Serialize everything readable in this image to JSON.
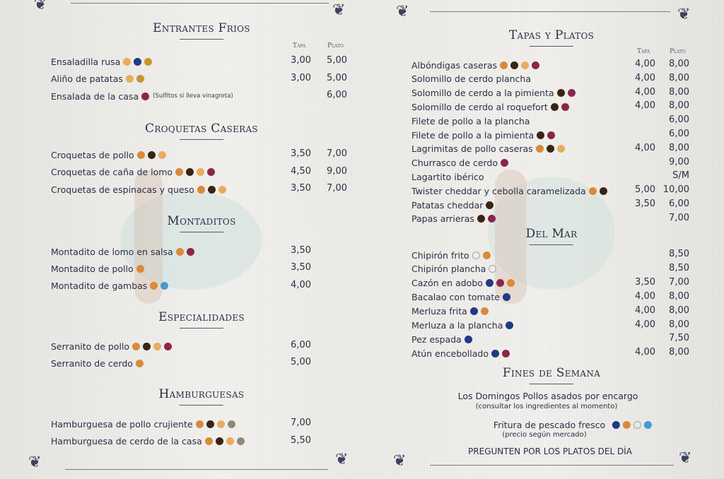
{
  "allergen_colors": {
    "gluten": "#d98a3a",
    "huevo": "#e9ac5e",
    "pescado": "#1f3a86",
    "lacteos": "#3a2414",
    "sulfitos": "#8a2647",
    "moluscos": "#9aa8a4",
    "crustaceos": "#4a98cf",
    "mostaza": "#c6952c",
    "sesamo": "#8c8a76"
  },
  "columns": {
    "tapa": "Tapa",
    "plato": "Plato"
  },
  "left": [
    {
      "title": "Entrantes Frios",
      "show_header": true,
      "items": [
        {
          "name": "Ensaladilla rusa",
          "allergens": [
            "huevo",
            "pescado",
            "mostaza"
          ],
          "tapa": "3,00",
          "plato": "5,00"
        },
        {
          "name": "Aliño de patatas",
          "allergens": [
            "huevo",
            "mostaza"
          ],
          "tapa": "3,00",
          "plato": "5,00"
        },
        {
          "name": "Ensalada de la casa",
          "allergens": [
            "sulfitos"
          ],
          "note": "(Sulfitos si lleva vinagreta)",
          "tapa": "",
          "plato": "6,00"
        }
      ]
    },
    {
      "title": "Croquetas Caseras",
      "items": [
        {
          "name": "Croquetas de pollo",
          "allergens": [
            "gluten",
            "lacteos",
            "huevo"
          ],
          "tapa": "3,50",
          "plato": "7,00"
        },
        {
          "name": "Croquetas de caña de lomo",
          "allergens": [
            "gluten",
            "lacteos",
            "huevo",
            "sulfitos"
          ],
          "tapa": "4,50",
          "plato": "9,00"
        },
        {
          "name": "Croquetas de espinacas y queso",
          "allergens": [
            "gluten",
            "lacteos",
            "huevo"
          ],
          "tapa": "3,50",
          "plato": "7,00"
        }
      ]
    },
    {
      "title": "Montaditos",
      "items": [
        {
          "name": "Montadito de lomo en salsa",
          "allergens": [
            "gluten",
            "sulfitos"
          ],
          "tapa": "3,50",
          "plato": ""
        },
        {
          "name": "Montadito de pollo",
          "allergens": [
            "gluten"
          ],
          "tapa": "3,50",
          "plato": ""
        },
        {
          "name": "Montadito de gambas",
          "allergens": [
            "gluten",
            "crustaceos"
          ],
          "tapa": "4,00",
          "plato": ""
        }
      ]
    },
    {
      "title": "Especialidades",
      "items": [
        {
          "name": "Serranito de pollo",
          "allergens": [
            "gluten",
            "lacteos",
            "huevo",
            "sulfitos"
          ],
          "tapa": "6,00",
          "plato": ""
        },
        {
          "name": "Serranito de cerdo",
          "allergens": [
            "gluten"
          ],
          "tapa": "5,00",
          "plato": ""
        }
      ]
    },
    {
      "title": "Hamburguesas",
      "items": [
        {
          "name": "Hamburguesa de pollo crujiente",
          "allergens": [
            "gluten",
            "lacteos",
            "huevo",
            "sesamo"
          ],
          "tapa": "7,00",
          "plato": ""
        },
        {
          "name": "Hamburguesa de cerdo de la casa",
          "allergens": [
            "gluten",
            "lacteos",
            "huevo",
            "sesamo"
          ],
          "tapa": "5,50",
          "plato": ""
        }
      ]
    }
  ],
  "right": [
    {
      "title": "Tapas y Platos",
      "show_header": true,
      "items": [
        {
          "name": "Albóndigas caseras",
          "allergens": [
            "gluten",
            "lacteos",
            "huevo",
            "sulfitos"
          ],
          "tapa": "4,00",
          "plato": "8,00"
        },
        {
          "name": "Solomillo de cerdo plancha",
          "allergens": [],
          "tapa": "4,00",
          "plato": "8,00"
        },
        {
          "name": "Solomillo de cerdo a la pimienta",
          "allergens": [
            "lacteos",
            "sulfitos"
          ],
          "tapa": "4,00",
          "plato": "8,00"
        },
        {
          "name": "Solomillo de cerdo al roquefort",
          "allergens": [
            "lacteos",
            "sulfitos"
          ],
          "tapa": "4,00",
          "plato": "8,00"
        },
        {
          "name": "Filete de pollo a la plancha",
          "allergens": [],
          "tapa": "",
          "plato": "6,00"
        },
        {
          "name": "Filete de pollo a la pimienta",
          "allergens": [
            "lacteos",
            "sulfitos"
          ],
          "tapa": "",
          "plato": "6,00"
        },
        {
          "name": "Lagrimitas de pollo caseras",
          "allergens": [
            "gluten",
            "lacteos",
            "huevo"
          ],
          "tapa": "4,00",
          "plato": "8,00"
        },
        {
          "name": "Churrasco de cerdo",
          "allergens": [
            "sulfitos"
          ],
          "tapa": "",
          "plato": "9,00"
        },
        {
          "name": "Lagartito ibérico",
          "allergens": [],
          "tapa": "",
          "plato": "S/M"
        },
        {
          "name": "Twister cheddar y cebolla caramelizada",
          "allergens": [
            "gluten",
            "lacteos"
          ],
          "tapa": "5,00",
          "plato": "10,00"
        },
        {
          "name": "Patatas cheddar",
          "allergens": [
            "lacteos"
          ],
          "tapa": "3,50",
          "plato": "6,00"
        },
        {
          "name": "Papas arrieras",
          "allergens": [
            "lacteos",
            "sulfitos"
          ],
          "tapa": "",
          "plato": "7,00"
        }
      ]
    },
    {
      "title": "Del Mar",
      "items": [
        {
          "name": "Chipirón frito",
          "allergens": [
            "moluscos",
            "gluten"
          ],
          "tapa": "",
          "plato": "8,50"
        },
        {
          "name": "Chipirón plancha",
          "allergens": [
            "moluscos"
          ],
          "tapa": "",
          "plato": "8,50"
        },
        {
          "name": "Cazón en adobo",
          "allergens": [
            "pescado",
            "sulfitos",
            "gluten"
          ],
          "tapa": "3,50",
          "plato": "7,00"
        },
        {
          "name": "Bacalao con tomate",
          "allergens": [
            "pescado"
          ],
          "tapa": "4,00",
          "plato": "8,00"
        },
        {
          "name": "Merluza frita",
          "allergens": [
            "pescado",
            "gluten"
          ],
          "tapa": "4,00",
          "plato": "8,00"
        },
        {
          "name": "Merluza a la plancha",
          "allergens": [
            "pescado"
          ],
          "tapa": "4,00",
          "plato": "8,00"
        },
        {
          "name": "Pez espada",
          "allergens": [
            "pescado"
          ],
          "tapa": "",
          "plato": "7,50"
        },
        {
          "name": "Atún encebollado",
          "allergens": [
            "pescado",
            "sulfitos"
          ],
          "tapa": "4,00",
          "plato": "8,00"
        }
      ]
    }
  ],
  "weekend": {
    "title": "Fines de Semana",
    "line1": "Los Domingos Pollos asados por encargo",
    "line1_note": "(consultar los ingredientes al momento)",
    "line2": "Fritura de pescado fresco",
    "line2_allergens": [
      "pescado",
      "gluten",
      "moluscos",
      "crustaceos"
    ],
    "line2_note": "(precio según mercado)",
    "footer": "PREGUNTEN POR LOS PLATOS DEL DÍA"
  }
}
